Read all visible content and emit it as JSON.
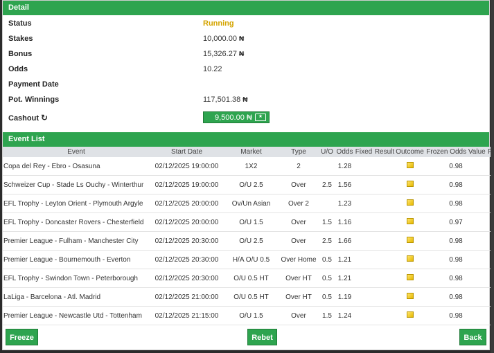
{
  "detail": {
    "title": "Detail",
    "status": {
      "label": "Status",
      "value": "Running",
      "color": "#d4a400"
    },
    "stakes": {
      "label": "Stakes",
      "value": "10,000.00",
      "currency": "₦"
    },
    "bonus": {
      "label": "Bonus",
      "value": "15,326.27",
      "currency": "₦"
    },
    "odds": {
      "label": "Odds",
      "value": "10.22"
    },
    "payment_date": {
      "label": "Payment Date",
      "value": ""
    },
    "pot_winnings": {
      "label": "Pot. Winnings",
      "value": "117,501.38",
      "currency": "₦"
    },
    "cashout": {
      "label": "Cashout",
      "amount": "9,500.00",
      "currency": "₦",
      "icon": "refresh-icon",
      "button_icon": "cash-icon"
    }
  },
  "event_list": {
    "title": "Event List",
    "columns": [
      "Event",
      "Start Date",
      "Market",
      "Type",
      "U/O",
      "Odds",
      "Fixed",
      "Result",
      "Outcome",
      "Frozen Odds Value",
      "Frozen"
    ],
    "rows": [
      {
        "event": "Copa del Rey - Ebro - Osasuna",
        "start": "02/12/2025 19:00:00",
        "market": "1X2",
        "type": "2",
        "uo": "",
        "odds": "1.28",
        "fixed": "",
        "result": "",
        "frozen_odds": "0.98"
      },
      {
        "event": "Schweizer Cup - Stade Ls Ouchy - Winterthur",
        "start": "02/12/2025 19:00:00",
        "market": "O/U 2.5",
        "type": "Over",
        "uo": "2.5",
        "odds": "1.56",
        "fixed": "",
        "result": "",
        "frozen_odds": "0.98"
      },
      {
        "event": "EFL Trophy - Leyton Orient - Plymouth Argyle",
        "start": "02/12/2025 20:00:00",
        "market": "Ov/Un Asian",
        "type": "Over 2",
        "uo": "",
        "odds": "1.23",
        "fixed": "",
        "result": "",
        "frozen_odds": "0.98"
      },
      {
        "event": "EFL Trophy - Doncaster Rovers - Chesterfield",
        "start": "02/12/2025 20:00:00",
        "market": "O/U 1.5",
        "type": "Over",
        "uo": "1.5",
        "odds": "1.16",
        "fixed": "",
        "result": "",
        "frozen_odds": "0.97"
      },
      {
        "event": "Premier League - Fulham - Manchester City",
        "start": "02/12/2025 20:30:00",
        "market": "O/U 2.5",
        "type": "Over",
        "uo": "2.5",
        "odds": "1.66",
        "fixed": "",
        "result": "",
        "frozen_odds": "0.98"
      },
      {
        "event": "Premier League - Bournemouth - Everton",
        "start": "02/12/2025 20:30:00",
        "market": "H/A O/U 0.5",
        "type": "Over Home",
        "uo": "0.5",
        "odds": "1.21",
        "fixed": "",
        "result": "",
        "frozen_odds": "0.98"
      },
      {
        "event": "EFL Trophy - Swindon Town - Peterborough",
        "start": "02/12/2025 20:30:00",
        "market": "O/U 0.5 HT",
        "type": "Over HT",
        "uo": "0.5",
        "odds": "1.21",
        "fixed": "",
        "result": "",
        "frozen_odds": "0.98"
      },
      {
        "event": "LaLiga - Barcelona - Atl. Madrid",
        "start": "02/12/2025 21:00:00",
        "market": "O/U 0.5 HT",
        "type": "Over HT",
        "uo": "0.5",
        "odds": "1.19",
        "fixed": "",
        "result": "",
        "frozen_odds": "0.98"
      },
      {
        "event": "Premier League - Newcastle Utd - Tottenham",
        "start": "02/12/2025 21:15:00",
        "market": "O/U 1.5",
        "type": "Over",
        "uo": "1.5",
        "odds": "1.24",
        "fixed": "",
        "result": "",
        "frozen_odds": "0.98"
      }
    ],
    "outcome_icon": "pending-outcome-icon"
  },
  "actions": {
    "freeze": "Freeze",
    "rebet": "Rebet",
    "back": "Back"
  },
  "colors": {
    "accent": "#2ea44f",
    "status_running": "#d4a400"
  }
}
